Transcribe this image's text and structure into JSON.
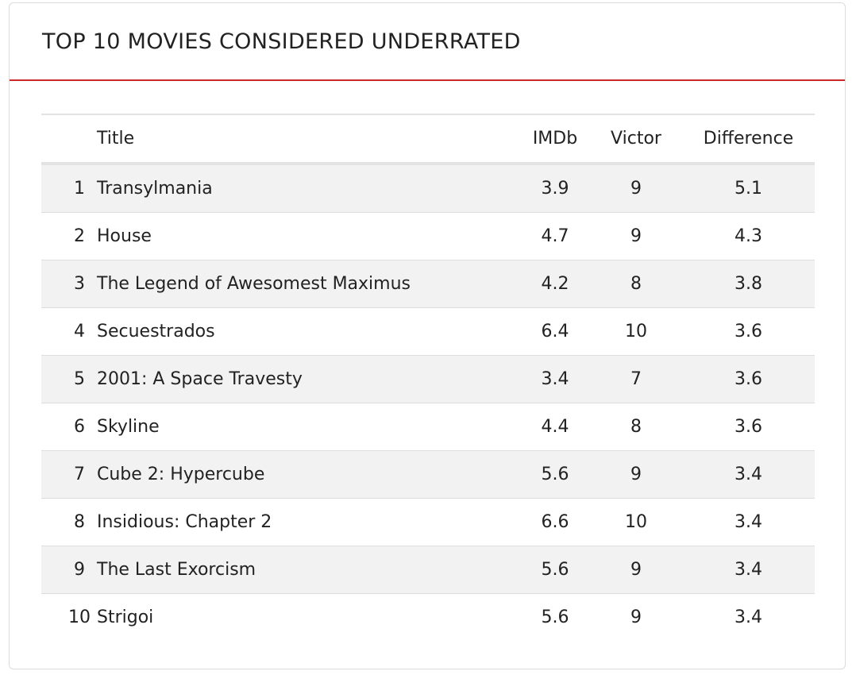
{
  "header": {
    "title": "TOP 10 MOVIES CONSIDERED UNDERRATED"
  },
  "table": {
    "columns": {
      "rank": "",
      "title": "Title",
      "imdb": "IMDb",
      "victor": "Victor",
      "difference": "Difference"
    },
    "rows": [
      {
        "rank": "1",
        "title": "Transylmania",
        "imdb": "3.9",
        "victor": "9",
        "difference": "5.1"
      },
      {
        "rank": "2",
        "title": "House",
        "imdb": "4.7",
        "victor": "9",
        "difference": "4.3"
      },
      {
        "rank": "3",
        "title": "The Legend of Awesomest Maximus",
        "imdb": "4.2",
        "victor": "8",
        "difference": "3.8"
      },
      {
        "rank": "4",
        "title": "Secuestrados",
        "imdb": "6.4",
        "victor": "10",
        "difference": "3.6"
      },
      {
        "rank": "5",
        "title": "2001: A Space Travesty",
        "imdb": "3.4",
        "victor": "7",
        "difference": "3.6"
      },
      {
        "rank": "6",
        "title": "Skyline",
        "imdb": "4.4",
        "victor": "8",
        "difference": "3.6"
      },
      {
        "rank": "7",
        "title": "Cube 2: Hypercube",
        "imdb": "5.6",
        "victor": "9",
        "difference": "3.4"
      },
      {
        "rank": "8",
        "title": "Insidious: Chapter 2",
        "imdb": "6.6",
        "victor": "10",
        "difference": "3.4"
      },
      {
        "rank": "9",
        "title": "The Last Exorcism",
        "imdb": "5.6",
        "victor": "9",
        "difference": "3.4"
      },
      {
        "rank": "10",
        "title": "Strigoi",
        "imdb": "5.6",
        "victor": "9",
        "difference": "3.4"
      }
    ]
  },
  "colors": {
    "accent": "#cc2a2a",
    "row_stripe": "#f2f2f2",
    "text": "#222222"
  }
}
